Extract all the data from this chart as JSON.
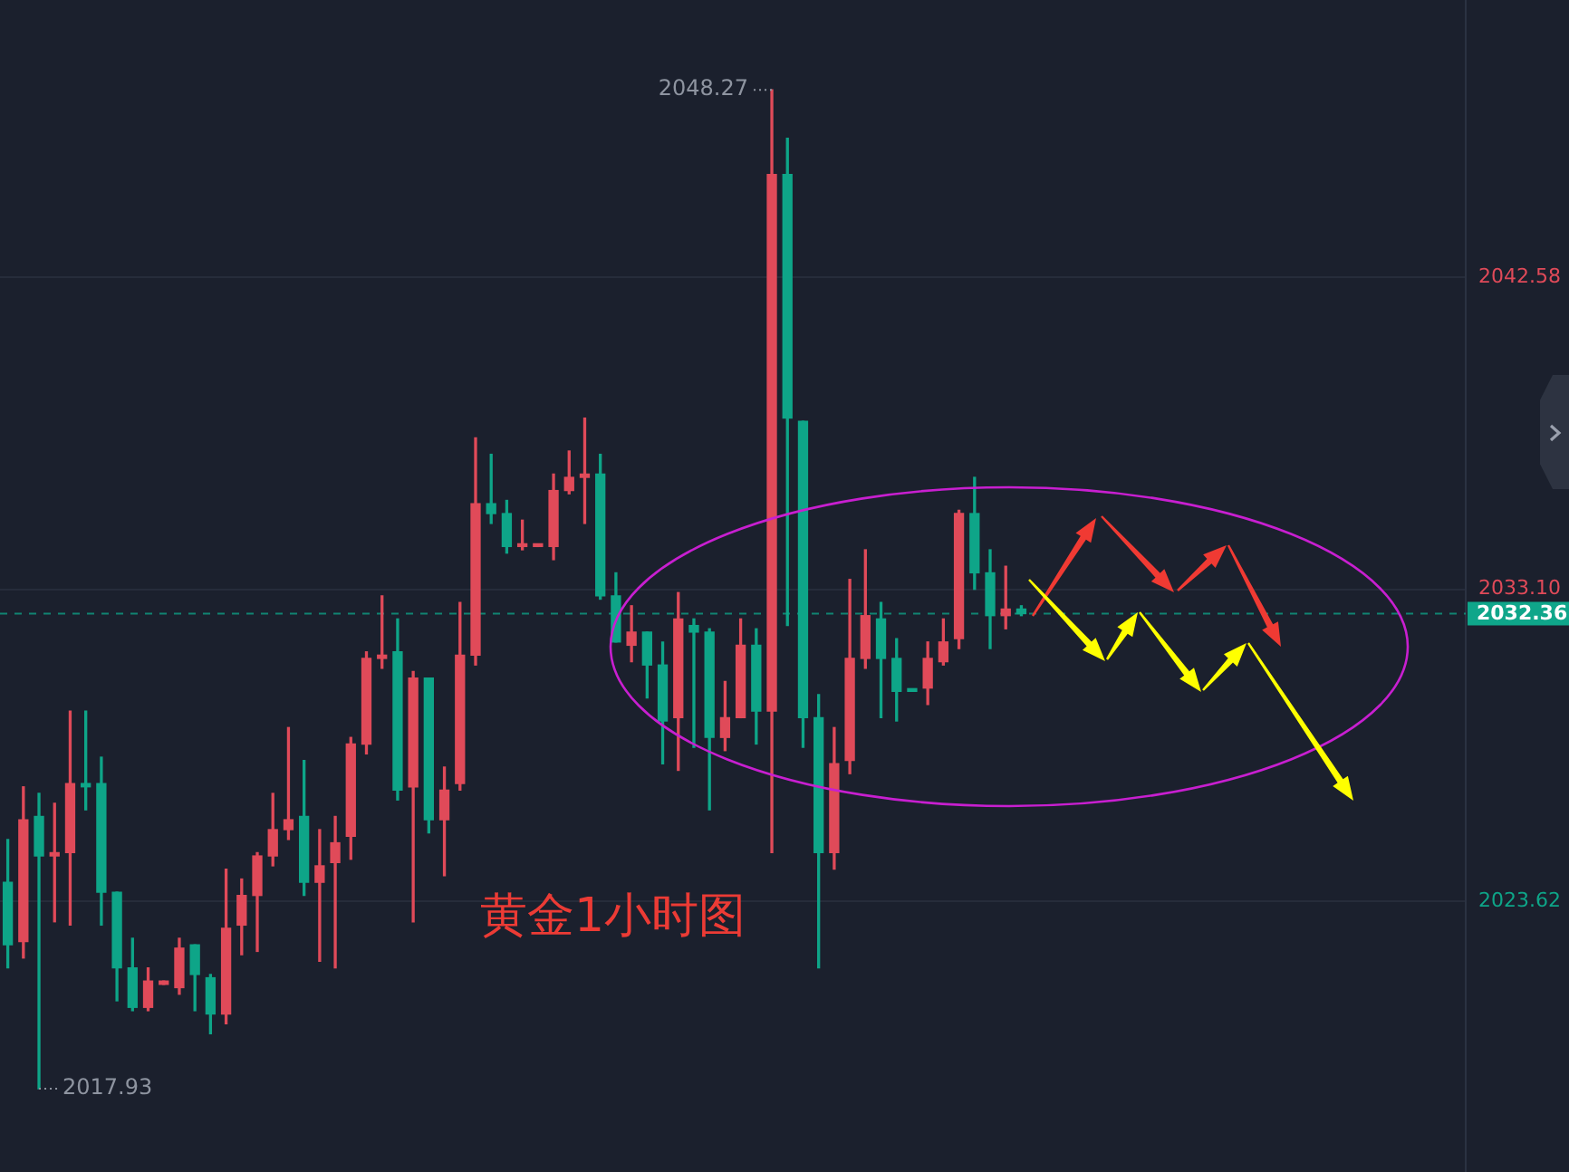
{
  "chart_data": {
    "type": "candlestick",
    "title": "黄金1小时图",
    "categories": [
      null,
      null,
      null,
      null,
      null,
      null,
      null,
      null,
      null,
      null,
      null,
      null,
      null,
      null,
      null,
      null,
      null,
      null,
      null,
      null,
      null,
      null,
      null,
      null,
      null,
      null,
      null,
      null,
      null,
      null,
      null,
      null,
      null,
      null,
      null,
      null,
      null,
      null,
      null,
      null,
      null,
      null,
      null,
      null,
      null,
      null,
      null,
      null,
      null,
      null,
      null,
      null,
      null,
      null,
      null,
      null,
      null,
      null,
      null,
      null,
      null,
      null,
      null,
      null,
      null,
      null,
      null,
      null,
      null,
      null,
      null,
      null,
      null,
      null,
      null,
      null,
      null,
      null,
      null,
      null,
      null,
      null,
      null,
      null,
      null,
      null,
      null,
      null,
      null,
      null,
      null,
      null,
      null,
      null
    ],
    "ohlc": [
      [
        2024.2,
        2025.5,
        2021.6,
        2022.3
      ],
      [
        2022.4,
        2027.1,
        2021.9,
        2026.1
      ],
      [
        2026.2,
        2026.9,
        2017.93,
        2025.0
      ],
      [
        2025.0,
        2026.6,
        2023.0,
        2025.1
      ],
      [
        2025.1,
        2029.4,
        2022.9,
        2027.2
      ],
      [
        2027.2,
        2029.4,
        2026.4,
        2027.1
      ],
      [
        2027.2,
        2028.0,
        2022.9,
        2023.9
      ],
      [
        2023.9,
        2023.9,
        2020.6,
        2021.6
      ],
      [
        2021.6,
        2022.5,
        2020.3,
        2020.4
      ],
      [
        2020.4,
        2021.6,
        2020.3,
        2021.2
      ],
      [
        2021.1,
        2021.2,
        2021.1,
        2021.2
      ],
      [
        2021.0,
        2022.5,
        2020.8,
        2022.2
      ],
      [
        2022.3,
        2022.3,
        2020.3,
        2021.4
      ],
      [
        2021.3,
        2021.4,
        2019.6,
        2020.2
      ],
      [
        2020.2,
        2024.6,
        2019.9,
        2022.8
      ],
      [
        2022.9,
        2024.3,
        2022.0,
        2023.8
      ],
      [
        2023.8,
        2025.1,
        2022.1,
        2025.0
      ],
      [
        2025.0,
        2026.9,
        2024.7,
        2025.8
      ],
      [
        2025.8,
        2028.9,
        2025.5,
        2026.1
      ],
      [
        2026.2,
        2027.9,
        2023.8,
        2024.2
      ],
      [
        2024.2,
        2025.8,
        2021.8,
        2024.7
      ],
      [
        2024.8,
        2026.2,
        2021.6,
        2025.4
      ],
      [
        2025.6,
        2028.6,
        2024.9,
        2028.4
      ],
      [
        2028.4,
        2031.2,
        2028.1,
        2031.0
      ],
      [
        2031.0,
        2032.9,
        2030.7,
        2031.1
      ],
      [
        2031.2,
        2032.2,
        2026.7,
        2027.0
      ],
      [
        2027.1,
        2030.6,
        2023.0,
        2030.4
      ],
      [
        2030.4,
        2030.4,
        2025.7,
        2026.1
      ],
      [
        2026.1,
        2027.7,
        2024.4,
        2027.0
      ],
      [
        2027.2,
        2032.7,
        2027.0,
        2031.1
      ],
      [
        2031.1,
        2037.7,
        2030.8,
        2035.7
      ],
      [
        2035.7,
        2037.2,
        2035.1,
        2035.4
      ],
      [
        2035.4,
        2035.8,
        2034.2,
        2034.4
      ],
      [
        2034.4,
        2035.2,
        2034.3,
        2034.4
      ],
      [
        2034.4,
        2034.4,
        2034.4,
        2034.4
      ],
      [
        2034.4,
        2036.6,
        2034.0,
        2036.1
      ],
      [
        2036.1,
        2037.3,
        2036.0,
        2036.5
      ],
      [
        2036.5,
        2038.3,
        2035.1,
        2036.6
      ],
      [
        2036.6,
        2037.2,
        2032.8,
        2032.9
      ],
      [
        2032.9,
        2033.6,
        2031.5,
        2031.5
      ],
      [
        2031.4,
        2032.6,
        2030.9,
        2031.8
      ],
      [
        2031.8,
        2031.8,
        2029.8,
        2030.8
      ],
      [
        2030.8,
        2031.5,
        2027.8,
        2029.1
      ],
      [
        2029.2,
        2033.0,
        2027.6,
        2032.2
      ],
      [
        2032.0,
        2032.2,
        2028.3,
        2031.8
      ],
      [
        2031.8,
        2031.9,
        2026.4,
        2028.6
      ],
      [
        2028.6,
        2030.3,
        2028.2,
        2029.2
      ],
      [
        2029.2,
        2032.2,
        2029.2,
        2031.4
      ],
      [
        2031.4,
        2031.9,
        2028.4,
        2029.4
      ],
      [
        2029.4,
        2048.27,
        2025.1,
        2045.7
      ],
      [
        2045.7,
        2046.8,
        2032.0,
        2038.3
      ],
      [
        2038.2,
        2038.2,
        2028.3,
        2029.2
      ],
      [
        2029.2,
        2029.9,
        2021.6,
        2025.1
      ],
      [
        2025.1,
        2028.9,
        2024.6,
        2027.8
      ],
      [
        2027.9,
        2033.4,
        2027.5,
        2031.0
      ],
      [
        2031.0,
        2034.3,
        2030.7,
        2032.3
      ],
      [
        2032.2,
        2032.7,
        2029.2,
        2031.0
      ],
      [
        2031.0,
        2031.6,
        2029.1,
        2030.0
      ],
      [
        2030.0,
        2030.0,
        2030.0,
        2030.0
      ],
      [
        2030.1,
        2031.5,
        2029.6,
        2031.0
      ],
      [
        2030.9,
        2032.2,
        2030.8,
        2031.5
      ],
      [
        2031.6,
        2035.5,
        2031.3,
        2035.4
      ],
      [
        2035.4,
        2036.5,
        2033.1,
        2033.6
      ],
      [
        2033.6,
        2034.3,
        2031.3,
        2032.3
      ],
      [
        2032.3,
        2033.8,
        2031.9,
        2032.5
      ],
      [
        2032.5,
        2032.6,
        2032.3,
        2032.36
      ],
      null,
      null,
      null,
      null,
      null,
      null,
      null,
      null,
      null,
      null,
      null,
      null,
      null,
      null,
      null,
      null,
      null,
      null,
      null,
      null,
      null,
      null,
      null,
      null,
      null,
      null,
      null,
      null
    ],
    "colors": [
      "#0ea588",
      "#e04a59",
      "#0ea588",
      "#e04a59",
      "#e04a59",
      "#0ea588",
      "#0ea588",
      "#0ea588",
      "#0ea588",
      "#e04a59",
      "#e04a59",
      "#e04a59",
      "#0ea588",
      "#0ea588",
      "#e04a59",
      "#e04a59",
      "#e04a59",
      "#e04a59",
      "#e04a59",
      "#0ea588",
      "#e04a59",
      "#e04a59",
      "#e04a59",
      "#e04a59",
      "#e04a59",
      "#0ea588",
      "#e04a59",
      "#0ea588",
      "#e04a59",
      "#e04a59",
      "#e04a59",
      "#0ea588",
      "#0ea588",
      "#e04a59",
      "#e04a59",
      "#e04a59",
      "#e04a59",
      "#e04a59",
      "#0ea588",
      "#0ea588",
      "#e04a59",
      "#0ea588",
      "#0ea588",
      "#e04a59",
      "#0ea588",
      "#0ea588",
      "#e04a59",
      "#e04a59",
      "#0ea588",
      "#e04a59",
      "#0ea588",
      "#0ea588",
      "#0ea588",
      "#e04a59",
      "#e04a59",
      "#e04a59",
      "#0ea588",
      "#0ea588",
      "#0ea588",
      "#e04a59",
      "#e04a59",
      "#e04a59",
      "#0ea588",
      "#0ea588",
      "#e04a59",
      "#0ea588",
      null,
      null,
      null,
      null,
      null,
      null,
      null,
      null,
      null,
      null,
      null,
      null,
      null,
      null,
      null,
      null,
      null,
      null,
      null,
      null,
      null,
      null,
      null,
      null,
      null,
      null,
      null,
      null
    ],
    "ylim": [
      2015.4,
      2051.0
    ],
    "yticks": [
      2023.62,
      {
        "value": 2033.1,
        "label": "2033.10"
      },
      2042.58
    ],
    "grid": "y",
    "tick_labels": "y",
    "ref_lines": [
      {
        "axis": "y",
        "value": 2032.36,
        "label": "2032.36",
        "color": "#0fa68a",
        "line_style": "dashed"
      }
    ],
    "annotations": [
      "2048.27",
      "2017.93"
    ]
  }
}
